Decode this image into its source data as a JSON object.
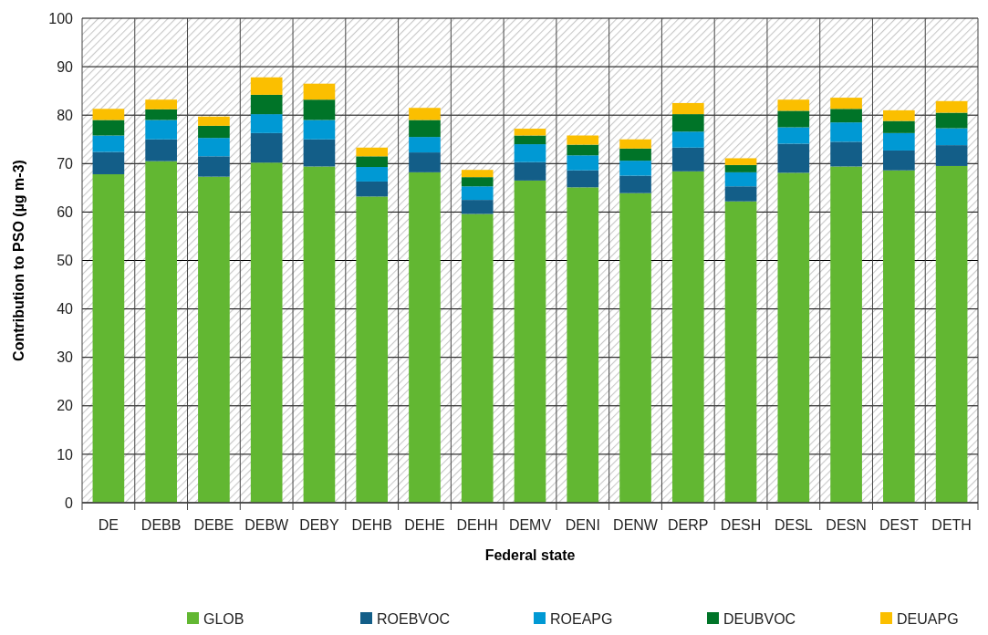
{
  "chart_data": {
    "type": "bar",
    "stacked": true,
    "xlabel": "Federal state",
    "ylabel": "Contribution to PSO (µg m-3)",
    "categories": [
      "DE",
      "DEBB",
      "DEBE",
      "DEBW",
      "DEBY",
      "DEHB",
      "DEHE",
      "DEHH",
      "DEMV",
      "DENI",
      "DENW",
      "DERP",
      "DESH",
      "DESL",
      "DESN",
      "DEST",
      "DETH"
    ],
    "series": [
      {
        "name": "GLOB",
        "color": "#62b732",
        "values": [
          67.8,
          70.5,
          67.3,
          70.2,
          69.4,
          63.2,
          68.2,
          59.6,
          66.5,
          65.1,
          63.9,
          68.4,
          62.2,
          68.1,
          69.4,
          68.6,
          69.5
        ]
      },
      {
        "name": "ROEBVOC",
        "color": "#135e88",
        "values": [
          4.6,
          4.5,
          4.2,
          6.1,
          5.6,
          3.1,
          4.1,
          2.9,
          3.8,
          3.5,
          3.6,
          4.9,
          3.1,
          6.0,
          5.1,
          4.1,
          4.3
        ]
      },
      {
        "name": "ROEAPG",
        "color": "#0099d4",
        "values": [
          3.4,
          4.0,
          3.8,
          3.9,
          4.0,
          3.0,
          3.2,
          2.8,
          3.7,
          3.1,
          3.1,
          3.3,
          2.9,
          3.4,
          4.0,
          3.6,
          3.5
        ]
      },
      {
        "name": "DEUBVOC",
        "color": "#007428",
        "values": [
          3.2,
          2.2,
          2.5,
          4.0,
          4.2,
          2.2,
          3.5,
          1.9,
          1.8,
          2.2,
          2.5,
          3.6,
          1.5,
          3.4,
          2.8,
          2.5,
          3.2
        ]
      },
      {
        "name": "DEUAPG",
        "color": "#fbbf00",
        "values": [
          2.3,
          2.0,
          1.9,
          3.6,
          3.3,
          1.8,
          2.5,
          1.5,
          1.4,
          1.9,
          1.9,
          2.3,
          1.4,
          2.3,
          2.3,
          2.2,
          2.4
        ]
      }
    ],
    "ylim": [
      0,
      100
    ],
    "yticks": [
      0,
      10,
      20,
      30,
      40,
      50,
      60,
      70,
      80,
      90,
      100
    ],
    "grid": "y",
    "legend": "bottom"
  }
}
